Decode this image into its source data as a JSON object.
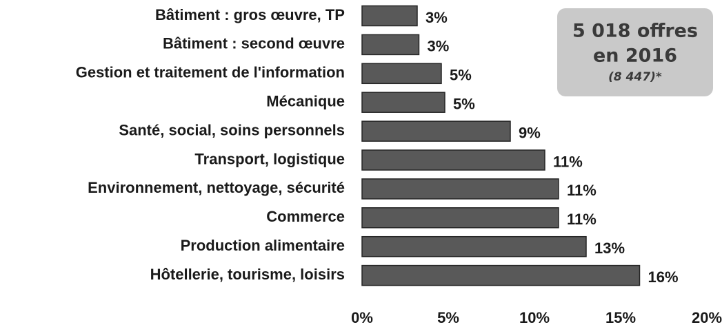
{
  "chart_data": {
    "type": "barh",
    "categories": [
      "Bâtiment : gros œuvre, TP",
      "Bâtiment : second œuvre",
      "Gestion et traitement de l'information",
      "Mécanique",
      "Santé, social, soins personnels",
      "Transport, logistique",
      "Environnement, nettoyage, sécurité",
      "Commerce",
      "Production alimentaire",
      "Hôtellerie, tourisme, loisirs"
    ],
    "values": [
      3.2,
      3.3,
      4.6,
      4.8,
      8.6,
      10.6,
      11.4,
      11.4,
      13.0,
      16.1
    ],
    "value_labels": [
      "3%",
      "3%",
      "5%",
      "5%",
      "9%",
      "11%",
      "11%",
      "11%",
      "13%",
      "16%"
    ],
    "color": "#595959",
    "xlim": [
      0,
      20
    ],
    "xticks": [
      {
        "value": 0,
        "label": "0%"
      },
      {
        "value": 5,
        "label": "5%"
      },
      {
        "value": 10,
        "label": "10%"
      },
      {
        "value": 15,
        "label": "15%"
      },
      {
        "value": 20,
        "label": "20%"
      }
    ],
    "grid": false,
    "annotation": {
      "lines": [
        "5 018 offres",
        "en 2016"
      ],
      "note": "(8 447)*"
    }
  }
}
